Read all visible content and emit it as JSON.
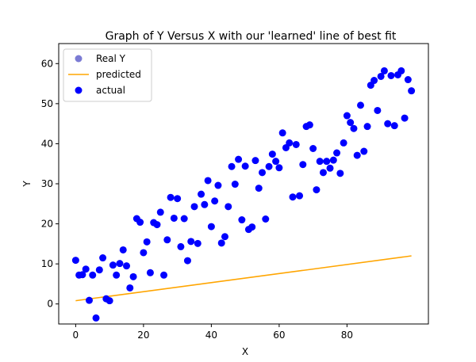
{
  "chart_data": {
    "type": "scatter",
    "title": "Graph of Y Versus X with our 'learned' line of best fit",
    "xlabel": "X",
    "ylabel": "Y",
    "xlim": [
      -5,
      104
    ],
    "ylim": [
      -5,
      65
    ],
    "xticks": [
      0,
      20,
      40,
      60,
      80
    ],
    "yticks": [
      0,
      10,
      20,
      30,
      40,
      50,
      60
    ],
    "grid": false,
    "legend": {
      "position": "top-left",
      "entries": [
        {
          "label": "Real Y",
          "marker": "circle",
          "color": "#7b7bd4"
        },
        {
          "label": "predicted",
          "marker": "line",
          "color": "#ffa500"
        },
        {
          "label": "actual",
          "marker": "circle",
          "color": "#0000ff"
        }
      ]
    },
    "series": [
      {
        "name": "predicted",
        "kind": "line",
        "color": "#ffa500",
        "x": [
          0,
          99
        ],
        "y": [
          0.8,
          12.0
        ]
      },
      {
        "name": "actual",
        "kind": "scatter",
        "color": "#0000ff",
        "x": [
          0,
          1,
          2,
          3,
          4,
          5,
          6,
          7,
          8,
          9,
          10,
          11,
          12,
          13,
          14,
          15,
          16,
          17,
          18,
          19,
          20,
          21,
          22,
          23,
          24,
          25,
          26,
          27,
          28,
          29,
          30,
          31,
          32,
          33,
          34,
          35,
          36,
          37,
          38,
          39,
          40,
          41,
          42,
          43,
          44,
          45,
          46,
          47,
          48,
          49,
          50,
          51,
          52,
          53,
          54,
          55,
          56,
          57,
          58,
          59,
          60,
          61,
          62,
          63,
          64,
          65,
          66,
          67,
          68,
          69,
          70,
          71,
          72,
          73,
          74,
          75,
          76,
          77,
          78,
          79,
          80,
          81,
          82,
          83,
          84,
          85,
          86,
          87,
          88,
          89,
          90,
          91,
          92,
          93,
          94,
          95,
          96,
          97,
          98,
          99
        ],
        "y": [
          10.9,
          7.2,
          7.3,
          8.7,
          0.9,
          7.2,
          -3.5,
          8.5,
          11.5,
          1.3,
          0.8,
          9.7,
          7.2,
          10.1,
          13.5,
          9.5,
          4.0,
          6.8,
          21.3,
          20.4,
          12.8,
          15.5,
          7.8,
          20.3,
          19.8,
          22.9,
          7.2,
          16.0,
          26.6,
          21.4,
          26.3,
          14.3,
          21.3,
          10.8,
          15.6,
          24.3,
          15.1,
          27.4,
          24.8,
          30.8,
          19.3,
          25.7,
          29.6,
          15.2,
          16.8,
          24.3,
          34.3,
          29.9,
          36.1,
          21.0,
          34.4,
          18.6,
          19.2,
          35.8,
          28.9,
          32.8,
          21.2,
          34.3,
          37.4,
          35.6,
          34.0,
          42.7,
          39.0,
          40.2,
          26.7,
          39.8,
          27.0,
          34.8,
          44.3,
          44.7,
          38.8,
          28.5,
          35.6,
          32.8,
          35.6,
          33.9,
          35.9,
          37.7,
          32.6,
          40.2,
          47.0,
          45.3,
          43.8,
          37.1,
          49.6,
          38.1,
          44.3,
          54.6,
          55.8,
          48.3,
          56.8,
          58.2,
          45.0,
          57.0,
          44.5,
          57.2,
          58.2,
          46.4,
          56.0,
          53.2
        ]
      }
    ]
  }
}
